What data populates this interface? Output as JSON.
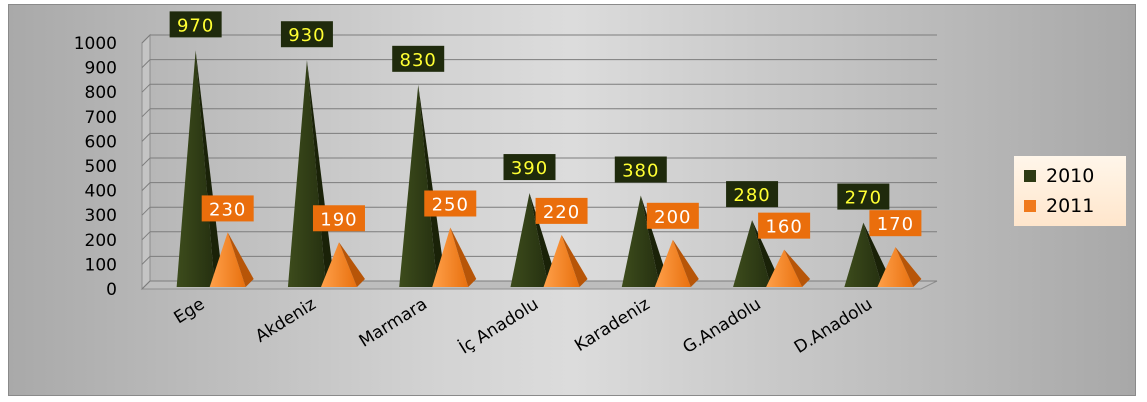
{
  "chart_data": {
    "type": "bar",
    "style": "3d-pyramid",
    "categories": [
      "Ege",
      "Akdeniz",
      "Marmara",
      "İç Anadolu",
      "Karadeniz",
      "G.Anadolu",
      "D.Anadolu"
    ],
    "series": [
      {
        "name": "2010",
        "values": [
          970,
          930,
          830,
          390,
          380,
          280,
          270
        ],
        "color": "#2d3a14",
        "label_bg": "#1f2a0c",
        "label_text": "#ffff33"
      },
      {
        "name": "2011",
        "values": [
          230,
          190,
          250,
          220,
          200,
          160,
          170
        ],
        "color": "#f07a1c",
        "label_bg": "#ea6e0c",
        "label_text": "#ffffff"
      }
    ],
    "y_ticks": [
      "0",
      "100",
      "200",
      "300",
      "400",
      "500",
      "600",
      "700",
      "800",
      "900",
      "1000"
    ],
    "ylim": [
      0,
      1000
    ],
    "grid": true,
    "legend_position": "right"
  }
}
